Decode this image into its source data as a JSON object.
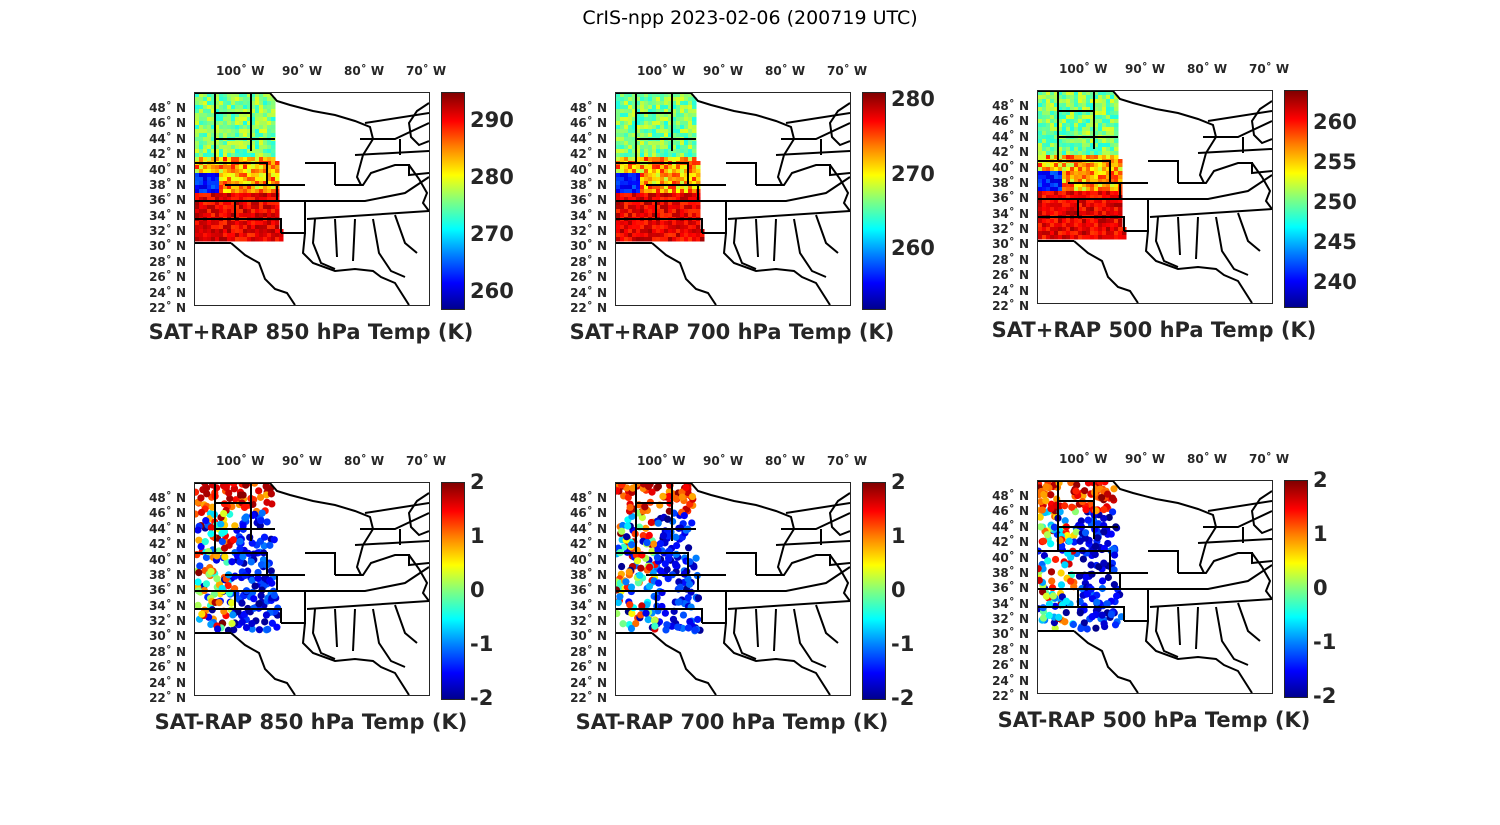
{
  "figure": {
    "title": "CrIS-npp 2023-02-06 (200719 UTC)"
  },
  "lon_labels": [
    "100˚ W",
    "90˚ W",
    "80˚ W",
    "70˚ W"
  ],
  "lat_labels": [
    "48˚ N",
    "46˚ N",
    "44˚ N",
    "42˚ N",
    "40˚ N",
    "38˚ N",
    "36˚ N",
    "34˚ N",
    "32˚ N",
    "30˚ N",
    "28˚ N",
    "26˚ N",
    "24˚ N",
    "22˚ N"
  ],
  "colormap": "jet",
  "panels": [
    {
      "caption": "SAT+RAP 850 hPa Temp (K)",
      "ticks": [
        "290",
        "280",
        "270",
        "260"
      ],
      "clim": [
        257,
        295
      ],
      "tick_values": [
        290,
        280,
        270,
        260
      ]
    },
    {
      "caption": "SAT+RAP 700 hPa Temp (K)",
      "ticks": [
        "280",
        "270",
        "260"
      ],
      "clim": [
        252,
        281
      ],
      "tick_values": [
        280,
        270,
        260
      ]
    },
    {
      "caption": "SAT+RAP 500 hPa Temp (K)",
      "ticks": [
        "260",
        "255",
        "250",
        "245",
        "240"
      ],
      "clim": [
        237,
        264
      ],
      "tick_values": [
        260,
        255,
        250,
        245,
        240
      ]
    },
    {
      "caption": "SAT-RAP 850 hPa Temp (K)",
      "ticks": [
        "2",
        "1",
        "0",
        "-1",
        "-2"
      ],
      "clim": [
        -2,
        2
      ],
      "tick_values": [
        2,
        1,
        0,
        -1,
        -2
      ]
    },
    {
      "caption": "SAT-RAP 700 hPa Temp (K)",
      "ticks": [
        "2",
        "1",
        "0",
        "-1",
        "-2"
      ],
      "clim": [
        -2,
        2
      ],
      "tick_values": [
        2,
        1,
        0,
        -1,
        -2
      ]
    },
    {
      "caption": "SAT-RAP 500 hPa Temp (K)",
      "ticks": [
        "2",
        "1",
        "0",
        "-1",
        "-2"
      ],
      "clim": [
        -2,
        2
      ],
      "tick_values": [
        2,
        1,
        0,
        -1,
        -2
      ]
    }
  ]
}
